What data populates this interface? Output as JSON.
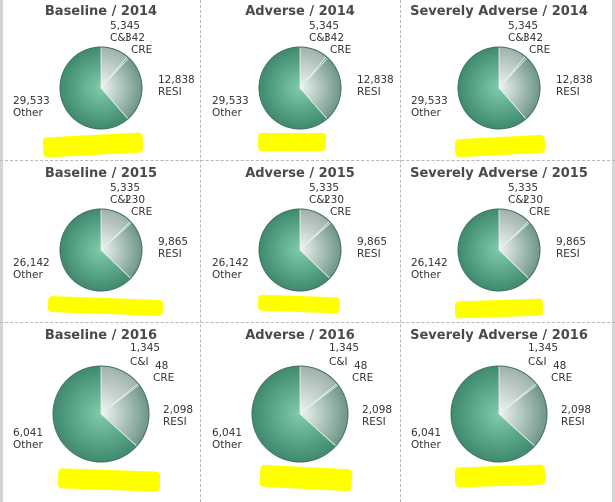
{
  "chart_data": [
    {
      "type": "pie",
      "title": "Baseline / 2014",
      "categories": [
        "C&I",
        "CRE",
        "RESI",
        "Other"
      ],
      "values": [
        5345,
        342,
        12838,
        29533
      ]
    },
    {
      "type": "pie",
      "title": "Adverse / 2014",
      "categories": [
        "C&I",
        "CRE",
        "RESI",
        "Other"
      ],
      "values": [
        5345,
        342,
        12838,
        29533
      ]
    },
    {
      "type": "pie",
      "title": "Severely Adverse / 2014",
      "categories": [
        "C&I",
        "CRE",
        "RESI",
        "Other"
      ],
      "values": [
        5345,
        342,
        12838,
        29533
      ]
    },
    {
      "type": "pie",
      "title": "Baseline / 2015",
      "categories": [
        "C&I",
        "CRE",
        "RESI",
        "Other"
      ],
      "values": [
        5335,
        230,
        9865,
        26142
      ]
    },
    {
      "type": "pie",
      "title": "Adverse / 2015",
      "categories": [
        "C&I",
        "CRE",
        "RESI",
        "Other"
      ],
      "values": [
        5335,
        230,
        9865,
        26142
      ]
    },
    {
      "type": "pie",
      "title": "Severely Adverse / 2015",
      "categories": [
        "C&I",
        "CRE",
        "RESI",
        "Other"
      ],
      "values": [
        5335,
        230,
        9865,
        26142
      ]
    },
    {
      "type": "pie",
      "title": "Baseline / 2016",
      "categories": [
        "C&I",
        "CRE",
        "RESI",
        "Other"
      ],
      "values": [
        1345,
        48,
        2098,
        6041
      ]
    },
    {
      "type": "pie",
      "title": "Adverse / 2016",
      "categories": [
        "C&I",
        "CRE",
        "RESI",
        "Other"
      ],
      "values": [
        1345,
        48,
        2098,
        6041
      ]
    },
    {
      "type": "pie",
      "title": "Severely Adverse / 2016",
      "categories": [
        "C&I",
        "CRE",
        "RESI",
        "Other"
      ],
      "values": [
        1345,
        48,
        2098,
        6041
      ]
    }
  ],
  "display_values": [
    [
      "5,345",
      "342",
      "12,838",
      "29,533"
    ],
    [
      "5,345",
      "342",
      "12,838",
      "29,533"
    ],
    [
      "5,345",
      "342",
      "12,838",
      "29,533"
    ],
    [
      "5,335",
      "230",
      "9,865",
      "26,142"
    ],
    [
      "5,335",
      "230",
      "9,865",
      "26,142"
    ],
    [
      "5,335",
      "230",
      "9,865",
      "26,142"
    ],
    [
      "1,345",
      "48",
      "2,098",
      "6,041"
    ],
    [
      "1,345",
      "48",
      "2,098",
      "6,041"
    ],
    [
      "1,345",
      "48",
      "2,098",
      "6,041"
    ]
  ],
  "colors": {
    "C&I": "#c9d6d2",
    "CRE": "#2aa58a",
    "RESI": "#93b6a8",
    "Other": "#5daa8c"
  }
}
